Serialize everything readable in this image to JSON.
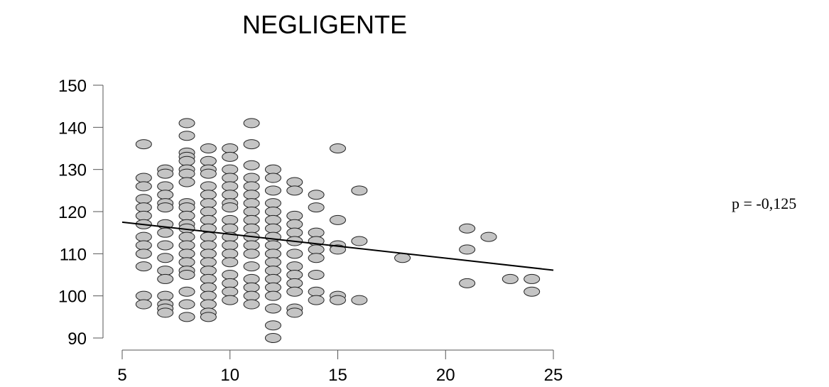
{
  "chart_data": {
    "type": "scatter",
    "title": "NEGLIGENTE",
    "xlabel": "",
    "ylabel": "",
    "xlim": [
      5,
      25
    ],
    "ylim": [
      90,
      150
    ],
    "x_ticks": [
      5,
      10,
      15,
      20,
      25
    ],
    "y_ticks": [
      90,
      100,
      110,
      120,
      130,
      140,
      150
    ],
    "annotation": "p = -0,125",
    "grid": false,
    "point_color": "#c4c4c4",
    "trend_line": {
      "x": [
        5,
        25
      ],
      "y": [
        117.5,
        106.1
      ]
    },
    "points": [
      [
        6,
        136
      ],
      [
        6,
        128
      ],
      [
        6,
        126
      ],
      [
        6,
        123
      ],
      [
        6,
        121
      ],
      [
        6,
        119
      ],
      [
        6,
        117
      ],
      [
        6,
        114
      ],
      [
        6,
        112
      ],
      [
        6,
        110
      ],
      [
        6,
        107
      ],
      [
        6,
        100
      ],
      [
        6,
        98
      ],
      [
        7,
        130
      ],
      [
        7,
        129
      ],
      [
        7,
        126
      ],
      [
        7,
        124
      ],
      [
        7,
        122
      ],
      [
        7,
        121
      ],
      [
        7,
        117
      ],
      [
        7,
        115
      ],
      [
        7,
        112
      ],
      [
        7,
        109
      ],
      [
        7,
        106
      ],
      [
        7,
        104
      ],
      [
        7,
        100
      ],
      [
        7,
        98
      ],
      [
        7,
        97
      ],
      [
        7,
        96
      ],
      [
        8,
        141
      ],
      [
        8,
        138
      ],
      [
        8,
        134
      ],
      [
        8,
        133
      ],
      [
        8,
        132
      ],
      [
        8,
        130
      ],
      [
        8,
        129
      ],
      [
        8,
        127
      ],
      [
        8,
        122
      ],
      [
        8,
        121
      ],
      [
        8,
        119
      ],
      [
        8,
        117
      ],
      [
        8,
        116
      ],
      [
        8,
        114
      ],
      [
        8,
        112
      ],
      [
        8,
        110
      ],
      [
        8,
        108
      ],
      [
        8,
        106
      ],
      [
        8,
        105
      ],
      [
        8,
        101
      ],
      [
        8,
        98
      ],
      [
        8,
        95
      ],
      [
        9,
        135
      ],
      [
        9,
        132
      ],
      [
        9,
        130
      ],
      [
        9,
        129
      ],
      [
        9,
        126
      ],
      [
        9,
        124
      ],
      [
        9,
        122
      ],
      [
        9,
        120
      ],
      [
        9,
        118
      ],
      [
        9,
        116
      ],
      [
        9,
        114
      ],
      [
        9,
        112
      ],
      [
        9,
        110
      ],
      [
        9,
        108
      ],
      [
        9,
        106
      ],
      [
        9,
        104
      ],
      [
        9,
        102
      ],
      [
        9,
        100
      ],
      [
        9,
        98
      ],
      [
        9,
        96
      ],
      [
        9,
        95
      ],
      [
        10,
        135
      ],
      [
        10,
        133
      ],
      [
        10,
        130
      ],
      [
        10,
        128
      ],
      [
        10,
        126
      ],
      [
        10,
        124
      ],
      [
        10,
        122
      ],
      [
        10,
        121
      ],
      [
        10,
        118
      ],
      [
        10,
        116
      ],
      [
        10,
        114
      ],
      [
        10,
        112
      ],
      [
        10,
        110
      ],
      [
        10,
        108
      ],
      [
        10,
        105
      ],
      [
        10,
        103
      ],
      [
        10,
        101
      ],
      [
        10,
        99
      ],
      [
        11,
        141
      ],
      [
        11,
        136
      ],
      [
        11,
        131
      ],
      [
        11,
        128
      ],
      [
        11,
        126
      ],
      [
        11,
        124
      ],
      [
        11,
        122
      ],
      [
        11,
        120
      ],
      [
        11,
        118
      ],
      [
        11,
        116
      ],
      [
        11,
        114
      ],
      [
        11,
        112
      ],
      [
        11,
        110
      ],
      [
        11,
        107
      ],
      [
        11,
        104
      ],
      [
        11,
        102
      ],
      [
        11,
        100
      ],
      [
        11,
        98
      ],
      [
        12,
        130
      ],
      [
        12,
        128
      ],
      [
        12,
        125
      ],
      [
        12,
        122
      ],
      [
        12,
        120
      ],
      [
        12,
        118
      ],
      [
        12,
        116
      ],
      [
        12,
        114
      ],
      [
        12,
        112
      ],
      [
        12,
        110
      ],
      [
        12,
        108
      ],
      [
        12,
        106
      ],
      [
        12,
        104
      ],
      [
        12,
        102
      ],
      [
        12,
        100
      ],
      [
        12,
        97
      ],
      [
        12,
        93
      ],
      [
        12,
        90
      ],
      [
        13,
        127
      ],
      [
        13,
        125
      ],
      [
        13,
        119
      ],
      [
        13,
        117
      ],
      [
        13,
        115
      ],
      [
        13,
        113
      ],
      [
        13,
        110
      ],
      [
        13,
        107
      ],
      [
        13,
        105
      ],
      [
        13,
        103
      ],
      [
        13,
        101
      ],
      [
        13,
        97
      ],
      [
        13,
        96
      ],
      [
        14,
        124
      ],
      [
        14,
        121
      ],
      [
        14,
        115
      ],
      [
        14,
        113
      ],
      [
        14,
        111
      ],
      [
        14,
        109
      ],
      [
        14,
        105
      ],
      [
        14,
        101
      ],
      [
        14,
        99
      ],
      [
        15,
        135
      ],
      [
        15,
        118
      ],
      [
        15,
        112
      ],
      [
        15,
        111
      ],
      [
        15,
        100
      ],
      [
        15,
        99
      ],
      [
        16,
        125
      ],
      [
        16,
        113
      ],
      [
        16,
        99
      ],
      [
        18,
        109
      ],
      [
        21,
        116
      ],
      [
        21,
        111
      ],
      [
        21,
        103
      ],
      [
        22,
        114
      ],
      [
        23,
        104
      ],
      [
        24,
        104
      ],
      [
        24,
        101
      ]
    ]
  }
}
